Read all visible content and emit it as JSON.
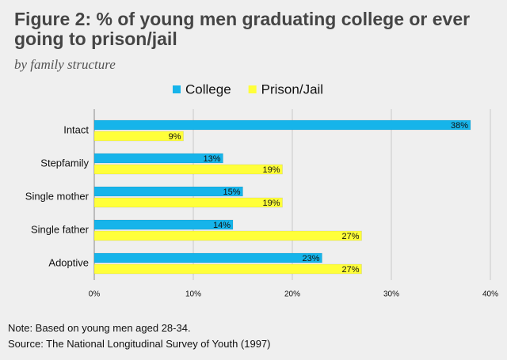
{
  "chart_data": {
    "type": "bar",
    "orientation": "horizontal",
    "title": "Figure 2: % of young men graduating college or ever going to prison/jail",
    "subtitle": "by family structure",
    "categories": [
      "Intact",
      "Stepfamily",
      "Single mother",
      "Single father",
      "Adoptive"
    ],
    "series": [
      {
        "name": "College",
        "color": "#16b4ea",
        "values": [
          38,
          13,
          15,
          14,
          23
        ],
        "value_labels": [
          "38%",
          "13%",
          "15%",
          "14%",
          "23%"
        ]
      },
      {
        "name": "Prison/Jail",
        "color": "#ffff3a",
        "values": [
          9,
          19,
          19,
          27,
          27
        ],
        "value_labels": [
          "9%",
          "19%",
          "19%",
          "27%",
          "27%"
        ]
      }
    ],
    "xlim": [
      0,
      40
    ],
    "xticks": [
      {
        "value": 0,
        "label": "0%"
      },
      {
        "value": 10,
        "label": "10%"
      },
      {
        "value": 20,
        "label": "20%"
      },
      {
        "value": 30,
        "label": "30%"
      },
      {
        "value": 40,
        "label": "40%"
      }
    ],
    "grid": true,
    "legend": "top",
    "notes": [
      "Note: Based on young men aged 28-34.",
      "Source: The National Longitudinal Survey of Youth (1997)"
    ]
  }
}
